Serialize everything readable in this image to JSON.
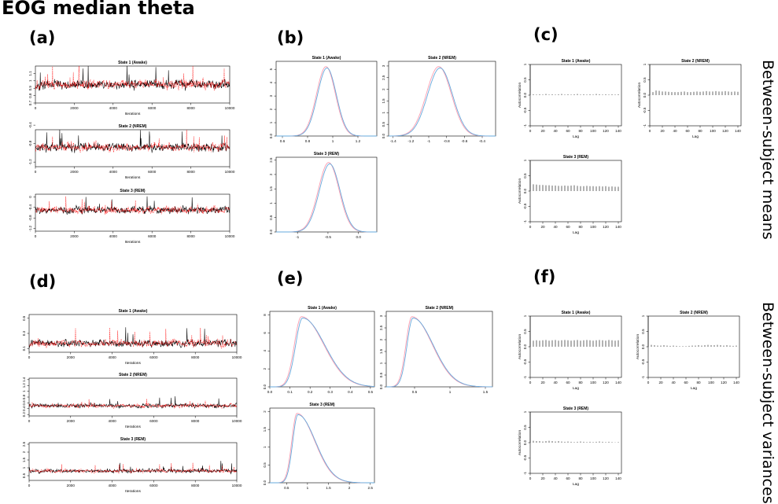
{
  "figure": {
    "title": "EOG median theta",
    "row_labels": [
      "Between-subject means",
      "Between-subject variances"
    ]
  },
  "panel_labels": {
    "a": "(a)",
    "b": "(b)",
    "c": "(c)",
    "d": "(d)",
    "e": "(e)",
    "f": "(f)"
  },
  "colors": {
    "chain1": "#000000",
    "chain2": "#ff0000",
    "density1": "#ff9db0",
    "density2": "#66aadd",
    "frame": "#000000"
  },
  "chart_data": [
    {
      "id": "a",
      "type": "line",
      "panel": "(a)",
      "row": "Between-subject means",
      "plots": [
        {
          "title": "State 1 (Awake)",
          "xlabel": "Iterations",
          "xlim": [
            0,
            10000
          ],
          "xticks": [
            0,
            2000,
            4000,
            6000,
            8000,
            10000
          ],
          "ylim": [
            0.7,
            1.2
          ],
          "yticks": [
            0.7,
            0.8,
            0.9,
            1.0,
            1.1
          ],
          "center": 0.95,
          "amp": 0.13,
          "series": [
            "chain 1",
            "chain 2"
          ]
        },
        {
          "title": "State 2 (NREM)",
          "xlabel": "Iterations",
          "xlim": [
            0,
            10000
          ],
          "xticks": [
            0,
            2000,
            4000,
            6000,
            8000,
            10000
          ],
          "ylim": [
            -1.3,
            -0.5
          ],
          "yticks": [
            -1.2,
            -0.8,
            -0.4
          ],
          "center": -0.88,
          "amp": 0.18,
          "series": [
            "chain 1",
            "chain 2"
          ]
        },
        {
          "title": "State 3 (REM)",
          "xlabel": "Iterations",
          "xlim": [
            0,
            10000
          ],
          "xticks": [
            0,
            2000,
            4000,
            6000,
            8000,
            10000
          ],
          "ylim": [
            -1.3,
            0.1
          ],
          "yticks": [
            -1.2,
            -0.8,
            -0.4,
            0.0
          ],
          "center": -0.5,
          "amp": 0.27,
          "series": [
            "chain 1",
            "chain 2"
          ]
        }
      ]
    },
    {
      "id": "b",
      "type": "line",
      "panel": "(b)",
      "row": "Between-subject means",
      "plots": [
        {
          "title": "State 1 (Awake)",
          "xlim": [
            0.55,
            1.35
          ],
          "xticks": [
            0.6,
            0.8,
            1.0,
            1.2
          ],
          "ylim": [
            0,
            5.6
          ],
          "yticks": [
            0,
            1,
            2,
            3,
            4,
            5
          ],
          "mean": 0.95,
          "sd": 0.075,
          "skew": 0
        },
        {
          "title": "State 2 (NREM)",
          "xlim": [
            -1.45,
            -0.25
          ],
          "xticks": [
            -1.4,
            -1.2,
            -1.0,
            -0.8,
            -0.6,
            -0.4
          ],
          "ylim": [
            0,
            3.2
          ],
          "yticks": [
            0,
            0.5,
            1.0,
            1.5,
            2.0,
            2.5,
            3.0
          ],
          "mean": -0.88,
          "sd": 0.14,
          "skew": 0
        },
        {
          "title": "State 3 (REM)",
          "xlim": [
            -1.35,
            0.3
          ],
          "xticks": [
            -1.0,
            -0.5,
            0.0
          ],
          "ylim": [
            0,
            2.6
          ],
          "yticks": [
            0,
            0.5,
            1.0,
            1.5,
            2.0,
            2.5
          ],
          "mean": -0.48,
          "sd": 0.17,
          "skew": 0
        }
      ]
    },
    {
      "id": "c",
      "type": "bar",
      "panel": "(c)",
      "row": "Between-subject means",
      "plots": [
        {
          "title": "State 1 (Awake)",
          "xlabel": "Lag",
          "ylabel": "Autocorrelation",
          "xlim": [
            0,
            145
          ],
          "xticks": [
            0,
            20,
            40,
            60,
            80,
            100,
            120,
            140
          ],
          "ylim": [
            -1.0,
            1.0
          ],
          "yticks": [
            -1.0,
            -0.5,
            0.0,
            0.5,
            1.0
          ],
          "lags": [
            0,
            5,
            10,
            15,
            20,
            25,
            30,
            35,
            40,
            45,
            50,
            55,
            60,
            65,
            70,
            75,
            80,
            85,
            90,
            95,
            100,
            105,
            110,
            115,
            120,
            125,
            130,
            135,
            140
          ],
          "values": [
            1.0,
            0.03,
            0.02,
            0.03,
            0.02,
            0.04,
            0.02,
            0.03,
            0.02,
            0.03,
            0.04,
            0.02,
            0.03,
            0.02,
            0.03,
            0.04,
            0.02,
            0.03,
            0.02,
            0.03,
            0.02,
            0.04,
            0.03,
            0.02,
            0.03,
            0.02,
            0.03,
            0.02,
            0.03
          ]
        },
        {
          "title": "State 2 (NREM)",
          "xlabel": "Lag",
          "ylabel": "Autocorrelation",
          "xlim": [
            0,
            145
          ],
          "xticks": [
            0,
            20,
            40,
            60,
            80,
            100,
            120,
            140
          ],
          "ylim": [
            -1.0,
            1.0
          ],
          "yticks": [
            -1.0,
            -0.5,
            0.0,
            0.5,
            1.0
          ],
          "lags": [
            0,
            5,
            10,
            15,
            20,
            25,
            30,
            35,
            40,
            45,
            50,
            55,
            60,
            65,
            70,
            75,
            80,
            85,
            90,
            95,
            100,
            105,
            110,
            115,
            120,
            125,
            130,
            135,
            140
          ],
          "values": [
            1.0,
            0.1,
            0.15,
            0.14,
            0.12,
            0.12,
            0.11,
            0.1,
            0.1,
            0.1,
            0.11,
            0.12,
            0.1,
            0.1,
            0.11,
            0.12,
            0.11,
            0.12,
            0.13,
            0.12,
            0.12,
            0.13,
            0.12,
            0.12,
            0.13,
            0.12,
            0.11,
            0.12,
            0.11
          ]
        },
        {
          "title": "State 3 (REM)",
          "xlabel": "Lag",
          "ylabel": "Autocorrelation",
          "xlim": [
            0,
            145
          ],
          "xticks": [
            0,
            20,
            40,
            60,
            80,
            100,
            120,
            140
          ],
          "ylim": [
            -1.0,
            1.0
          ],
          "yticks": [
            -1.0,
            -0.5,
            0.0,
            0.5,
            1.0
          ],
          "lags": [
            0,
            5,
            10,
            15,
            20,
            25,
            30,
            35,
            40,
            45,
            50,
            55,
            60,
            65,
            70,
            75,
            80,
            85,
            90,
            95,
            100,
            105,
            110,
            115,
            120,
            125,
            130,
            135,
            140
          ],
          "values": [
            1.0,
            0.22,
            0.21,
            0.2,
            0.2,
            0.19,
            0.19,
            0.18,
            0.18,
            0.17,
            0.17,
            0.18,
            0.17,
            0.18,
            0.19,
            0.17,
            0.16,
            0.16,
            0.17,
            0.16,
            0.16,
            0.15,
            0.16,
            0.15,
            0.16,
            0.14,
            0.15,
            0.14,
            0.14
          ]
        }
      ]
    },
    {
      "id": "d",
      "type": "line",
      "panel": "(d)",
      "row": "Between-subject variances",
      "plots": [
        {
          "title": "State 1 (Awake)",
          "xlabel": "Iterations",
          "xlim": [
            0,
            10000
          ],
          "xticks": [
            0,
            2000,
            4000,
            6000,
            8000,
            10000
          ],
          "ylim": [
            0.05,
            0.55
          ],
          "yticks": [
            0.1,
            0.3,
            0.5
          ],
          "center": 0.17,
          "amp": 0.1,
          "series": [
            "chain 1",
            "chain 2"
          ]
        },
        {
          "title": "State 2 (NREM)",
          "xlabel": "Iterations",
          "xlim": [
            0,
            10000
          ],
          "xticks": [
            0,
            2000,
            4000,
            6000,
            8000,
            10000
          ],
          "ylim": [
            0.15,
            1.45
          ],
          "yticks": [
            0.2,
            0.4,
            0.6,
            0.8,
            1.0,
            1.2,
            1.4
          ],
          "center": 0.5,
          "amp": 0.15,
          "series": [
            "chain 1",
            "chain 2"
          ]
        },
        {
          "title": "State 3 (REM)",
          "xlabel": "Iterations",
          "xlim": [
            0,
            10000
          ],
          "xticks": [
            0,
            2000,
            4000,
            6000,
            8000,
            10000
          ],
          "ylim": [
            0.2,
            2.6
          ],
          "yticks": [
            0.5,
            1.0,
            1.5,
            2.0,
            2.5
          ],
          "center": 0.8,
          "amp": 0.25,
          "series": [
            "chain 1",
            "chain 2"
          ]
        }
      ]
    },
    {
      "id": "e",
      "type": "line",
      "panel": "(e)",
      "row": "Between-subject variances",
      "plots": [
        {
          "title": "State 1 (Awake)",
          "xlim": [
            0.0,
            0.52
          ],
          "xticks": [
            0.0,
            0.1,
            0.2,
            0.3,
            0.4,
            0.5
          ],
          "ylim": [
            0,
            8.4
          ],
          "yticks": [
            0,
            2,
            4,
            6,
            8
          ],
          "mean": 0.16,
          "sd": 0.06,
          "skew": 1.2
        },
        {
          "title": "State 2 (NREM)",
          "xlim": [
            0.1,
            1.6
          ],
          "xticks": [
            0.5,
            1.0,
            1.5
          ],
          "ylim": [
            0,
            3.2
          ],
          "yticks": [
            0,
            0.5,
            1.0,
            1.5,
            2.0,
            2.5,
            3.0
          ],
          "mean": 0.47,
          "sd": 0.15,
          "skew": 1.3
        },
        {
          "title": "State 3 (REM)",
          "xlim": [
            0.1,
            2.6
          ],
          "xticks": [
            0.5,
            1.0,
            1.5,
            2.0,
            2.5
          ],
          "ylim": [
            0,
            2.1
          ],
          "yticks": [
            0,
            0.5,
            1.0,
            1.5,
            2.0
          ],
          "mean": 0.76,
          "sd": 0.22,
          "skew": 1.3
        }
      ]
    },
    {
      "id": "f",
      "type": "bar",
      "panel": "(f)",
      "row": "Between-subject variances",
      "plots": [
        {
          "title": "State 1 (Awake)",
          "xlabel": "Lag",
          "ylabel": "Autocorrelation",
          "xlim": [
            0,
            145
          ],
          "xticks": [
            0,
            20,
            40,
            60,
            80,
            100,
            120,
            140
          ],
          "ylim": [
            -1.0,
            1.0
          ],
          "yticks": [
            -1.0,
            -0.5,
            0.0,
            0.5,
            1.0
          ],
          "lags": [
            0,
            5,
            10,
            15,
            20,
            25,
            30,
            35,
            40,
            45,
            50,
            55,
            60,
            65,
            70,
            75,
            80,
            85,
            90,
            95,
            100,
            105,
            110,
            115,
            120,
            125,
            130,
            135,
            140
          ],
          "values": [
            1.0,
            0.2,
            0.21,
            0.2,
            0.21,
            0.22,
            0.2,
            0.21,
            0.22,
            0.2,
            0.21,
            0.22,
            0.21,
            0.2,
            0.21,
            0.22,
            0.2,
            0.21,
            0.22,
            0.21,
            0.2,
            0.21,
            0.22,
            0.21,
            0.2,
            0.22,
            0.21,
            0.2,
            0.21
          ]
        },
        {
          "title": "State 2 (NREM)",
          "xlabel": "Lag",
          "ylabel": "Autocorrelation",
          "xlim": [
            0,
            145
          ],
          "xticks": [
            0,
            20,
            40,
            60,
            80,
            100,
            120,
            140
          ],
          "ylim": [
            -1.0,
            1.0
          ],
          "yticks": [
            -1.0,
            -0.5,
            0.0,
            0.5,
            1.0
          ],
          "lags": [
            0,
            5,
            10,
            15,
            20,
            25,
            30,
            35,
            40,
            45,
            50,
            55,
            60,
            65,
            70,
            75,
            80,
            85,
            90,
            95,
            100,
            105,
            110,
            115,
            120,
            125,
            130,
            135,
            140
          ],
          "values": [
            1.0,
            0.06,
            0.05,
            0.04,
            0.04,
            0.05,
            0.04,
            0.03,
            0.04,
            0.03,
            0.02,
            0.02,
            0.02,
            0.03,
            0.04,
            0.04,
            0.05,
            0.04,
            0.05,
            0.06,
            0.05,
            0.05,
            0.06,
            0.05,
            0.04,
            0.05,
            0.04,
            0.03,
            0.04
          ]
        },
        {
          "title": "State 3 (REM)",
          "xlabel": "Lag",
          "ylabel": "Autocorrelation",
          "xlim": [
            0,
            145
          ],
          "xticks": [
            0,
            20,
            40,
            60,
            80,
            100,
            120,
            140
          ],
          "ylim": [
            -1.0,
            1.0
          ],
          "yticks": [
            -1.0,
            -0.5,
            0.0,
            0.5,
            1.0
          ],
          "lags": [
            0,
            5,
            10,
            15,
            20,
            25,
            30,
            35,
            40,
            45,
            50,
            55,
            60,
            65,
            70,
            75,
            80,
            85,
            90,
            95,
            100,
            105,
            110,
            115,
            120,
            125,
            130,
            135,
            140
          ],
          "values": [
            1.0,
            0.06,
            0.05,
            0.05,
            0.04,
            0.05,
            0.06,
            0.05,
            0.04,
            0.05,
            0.04,
            0.03,
            0.04,
            0.03,
            0.02,
            0.03,
            0.04,
            0.03,
            0.02,
            0.03,
            0.02,
            0.03,
            0.04,
            0.03,
            0.02,
            0.03,
            0.02,
            0.01,
            0.02
          ]
        }
      ]
    }
  ]
}
